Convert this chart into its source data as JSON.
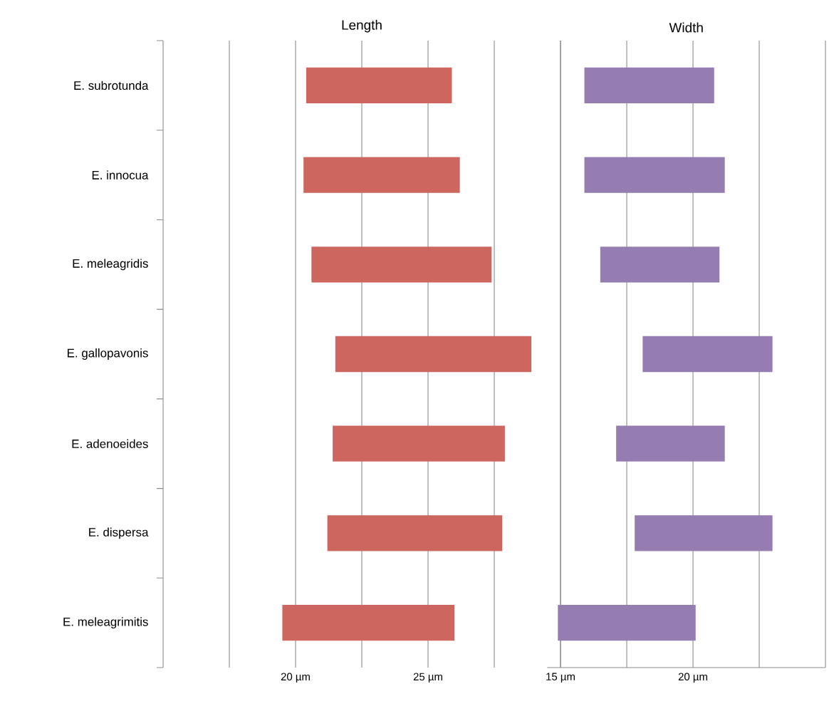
{
  "chart_data": [
    {
      "type": "bar",
      "title": "Length",
      "orientation": "horizontal",
      "categories": [
        "E. subrotunda",
        "E. innocua",
        "E. meleagridis",
        "E. gallopavonis",
        "E. adenoeides",
        "E. dispersa",
        "E. meleagrimitis"
      ],
      "base": [
        20.4,
        20.3,
        20.6,
        21.5,
        21.4,
        21.2,
        19.5
      ],
      "values": [
        5.5,
        5.9,
        6.8,
        7.4,
        6.5,
        6.6,
        6.5
      ],
      "color": "#cd665f",
      "xlim": [
        15,
        30
      ],
      "xticks": [
        {
          "value": 17.5,
          "label": null
        },
        {
          "value": 20,
          "label": "20 µm"
        },
        {
          "value": 22.5,
          "label": null
        },
        {
          "value": 25,
          "label": "25 µm"
        },
        {
          "value": 27.5,
          "label": null
        },
        {
          "value": 30,
          "label": null
        }
      ],
      "grid": "x"
    },
    {
      "type": "bar",
      "title": "Width",
      "orientation": "horizontal",
      "base": [
        15.9,
        15.9,
        16.5,
        18.1,
        17.1,
        17.8,
        14.9
      ],
      "values": [
        4.9,
        5.3,
        4.5,
        4.9,
        4.1,
        5.2,
        5.2
      ],
      "color": "#957db1",
      "xlim": [
        14.5,
        25
      ],
      "xticks": [
        {
          "value": 15,
          "label": "15 µm"
        },
        {
          "value": 17.5,
          "label": null
        },
        {
          "value": 20,
          "label": "20 µm"
        },
        {
          "value": 22.5,
          "label": null
        },
        {
          "value": 25,
          "label": null
        }
      ],
      "grid": "x",
      "tick_labels": "x"
    }
  ]
}
